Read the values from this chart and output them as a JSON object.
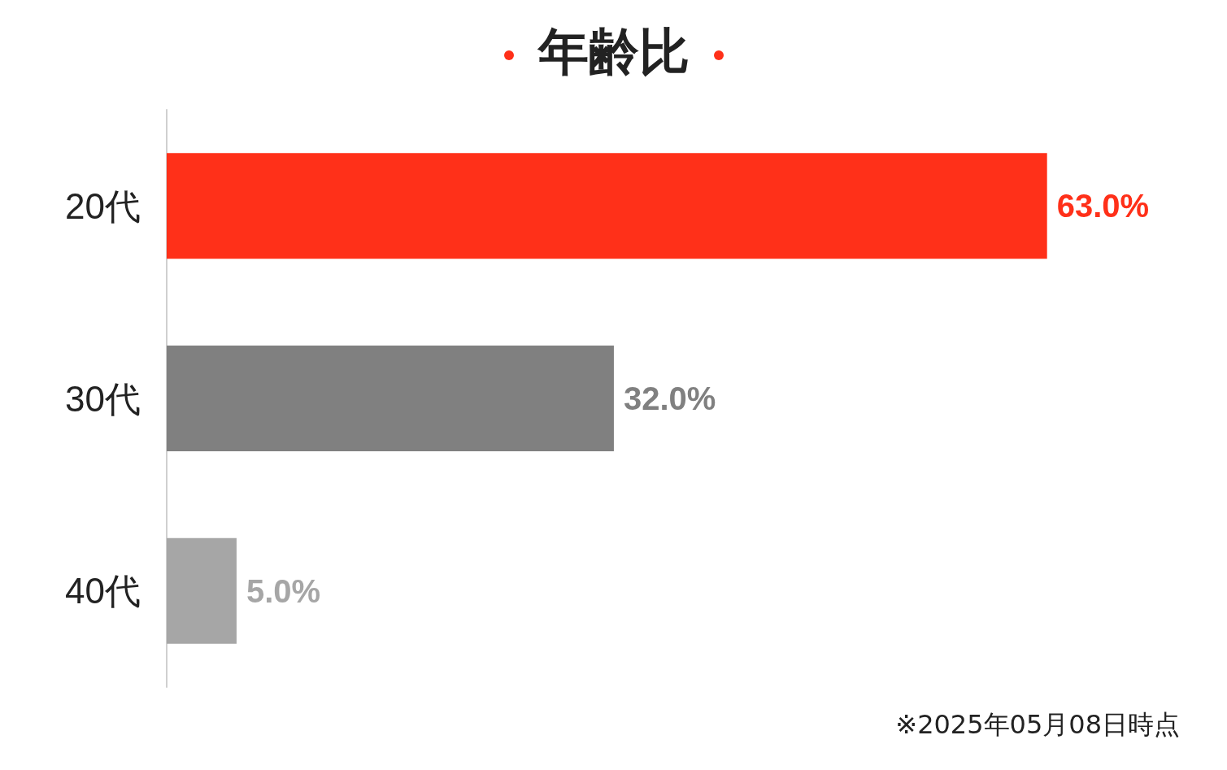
{
  "chart_data": {
    "type": "bar",
    "orientation": "horizontal",
    "title": "年齢比",
    "categories": [
      "20代",
      "30代",
      "40代"
    ],
    "values": [
      63,
      32,
      5
    ],
    "colors": [
      "#ff3019",
      "#808080",
      "#a6a6a6"
    ],
    "value_labels": [
      "63.0%",
      "32.0%",
      "5.0%"
    ],
    "annotations": [
      "※2025年05月08日時点"
    ]
  }
}
